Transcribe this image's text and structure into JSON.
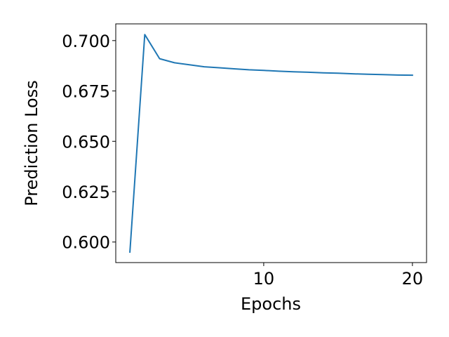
{
  "chart_data": {
    "type": "line",
    "title": "",
    "xlabel": "Epochs",
    "ylabel": "Prediction Loss",
    "xlim": [
      0.05,
      20.95
    ],
    "ylim": [
      0.5898,
      0.7083
    ],
    "xticks": [
      {
        "value": 10,
        "label": "10"
      },
      {
        "value": 20,
        "label": "20"
      }
    ],
    "yticks": [
      {
        "value": 0.6,
        "label": "0.600"
      },
      {
        "value": 0.625,
        "label": "0.625"
      },
      {
        "value": 0.65,
        "label": "0.650"
      },
      {
        "value": 0.675,
        "label": "0.675"
      },
      {
        "value": 0.7,
        "label": "0.700"
      }
    ],
    "grid": false,
    "legend": null,
    "series": [
      {
        "name": "Prediction Loss",
        "color": "#1f77b4",
        "x": [
          1,
          2,
          3,
          4,
          5,
          6,
          7,
          8,
          9,
          10,
          11,
          12,
          13,
          14,
          15,
          16,
          17,
          18,
          19,
          20
        ],
        "values": [
          0.595,
          0.703,
          0.691,
          0.689,
          0.688,
          0.687,
          0.6865,
          0.686,
          0.6855,
          0.6852,
          0.6848,
          0.6845,
          0.6843,
          0.684,
          0.6838,
          0.6835,
          0.6833,
          0.6831,
          0.6829,
          0.6828
        ]
      }
    ]
  }
}
